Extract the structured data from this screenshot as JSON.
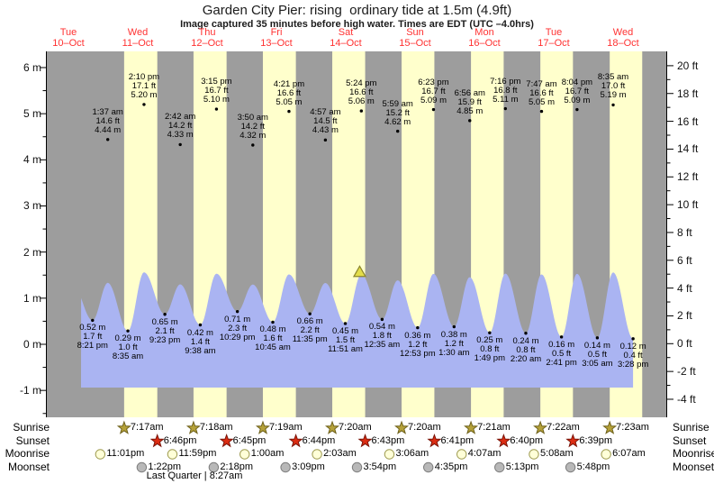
{
  "title": "Garden City Pier: rising  ordinary tide at 1.5m (4.9ft)",
  "subtitle": "Image captured 35 minutes before high water. Times are EDT (UTC –4.0hrs)",
  "colors": {
    "plot_bg": "#9d9d9d",
    "daylight_band": "#ffffcc",
    "tide_fill": "#aab4f2",
    "day_label": "#ff3232",
    "axis": "#000000",
    "marker_fill": "#e3dd4a",
    "marker_stroke": "#8b852b"
  },
  "chart_data": {
    "type": "area",
    "title": "Garden City Pier: rising  ordinary tide at 1.5m (4.9ft)",
    "x_axis": {
      "days": [
        {
          "name": "Tue",
          "date": "10–Oct"
        },
        {
          "name": "Wed",
          "date": "11–Oct"
        },
        {
          "name": "Thu",
          "date": "12–Oct"
        },
        {
          "name": "Fri",
          "date": "13–Oct"
        },
        {
          "name": "Sat",
          "date": "14–Oct"
        },
        {
          "name": "Sun",
          "date": "15–Oct"
        },
        {
          "name": "Mon",
          "date": "16–Oct"
        },
        {
          "name": "Tue",
          "date": "17–Oct"
        },
        {
          "name": "Wed",
          "date": "18–Oct"
        }
      ]
    },
    "y_axis_left": {
      "unit": "m",
      "ticks": [
        6,
        5,
        4,
        3,
        2,
        1,
        0,
        -1
      ],
      "minor_step": 0.5
    },
    "y_axis_right": {
      "unit": "ft",
      "ticks": [
        20,
        18,
        16,
        14,
        12,
        10,
        8,
        6,
        4,
        2,
        0,
        -2,
        -4
      ],
      "minor_step": 1
    },
    "high_tides": [
      {
        "day": 1,
        "hour": 1.6167,
        "time": "1:37 am",
        "ft": "14.6 ft",
        "m": "4.44 m"
      },
      {
        "day": 1,
        "hour": 14.1667,
        "time": "2:10 pm",
        "ft": "17.1 ft",
        "m": "5.20 m"
      },
      {
        "day": 2,
        "hour": 2.7,
        "time": "2:42 am",
        "ft": "14.2 ft",
        "m": "4.33 m"
      },
      {
        "day": 2,
        "hour": 15.25,
        "time": "3:15 pm",
        "ft": "16.7 ft",
        "m": "5.10 m"
      },
      {
        "day": 3,
        "hour": 3.8333,
        "time": "3:50 am",
        "ft": "14.2 ft",
        "m": "4.32 m"
      },
      {
        "day": 3,
        "hour": 16.35,
        "time": "4:21 pm",
        "ft": "16.6 ft",
        "m": "5.05 m"
      },
      {
        "day": 4,
        "hour": 4.95,
        "time": "4:57 am",
        "ft": "14.5 ft",
        "m": "4.43 m"
      },
      {
        "day": 4,
        "hour": 17.4,
        "time": "5:24 pm",
        "ft": "16.6 ft",
        "m": "5.06 m"
      },
      {
        "day": 5,
        "hour": 5.9833,
        "time": "5:59 am",
        "ft": "15.2 ft",
        "m": "4.62 m"
      },
      {
        "day": 5,
        "hour": 18.3833,
        "time": "6:23 pm",
        "ft": "16.7 ft",
        "m": "5.09 m"
      },
      {
        "day": 6,
        "hour": 6.9333,
        "time": "6:56 am",
        "ft": "15.9 ft",
        "m": "4.85 m"
      },
      {
        "day": 6,
        "hour": 19.2667,
        "time": "7:16 pm",
        "ft": "16.8 ft",
        "m": "5.11 m"
      },
      {
        "day": 7,
        "hour": 7.7833,
        "time": "7:47 am",
        "ft": "16.6 ft",
        "m": "5.05 m"
      },
      {
        "day": 7,
        "hour": 20.0667,
        "time": "8:04 pm",
        "ft": "16.7 ft",
        "m": "5.09 m"
      },
      {
        "day": 8,
        "hour": 8.5833,
        "time": "8:35 am",
        "ft": "17.0 ft",
        "m": "5.19 m"
      }
    ],
    "low_tides": [
      {
        "day": 0,
        "hour": 20.35,
        "time": "8:21 pm",
        "ft": "1.7 ft",
        "m": "0.52 m"
      },
      {
        "day": 1,
        "hour": 8.5833,
        "time": "8:35 am",
        "ft": "1.0 ft",
        "m": "0.29 m"
      },
      {
        "day": 1,
        "hour": 21.3833,
        "time": "9:23 pm",
        "ft": "2.1 ft",
        "m": "0.65 m"
      },
      {
        "day": 2,
        "hour": 9.6333,
        "time": "9:38 am",
        "ft": "1.4 ft",
        "m": "0.42 m"
      },
      {
        "day": 2,
        "hour": 22.4833,
        "time": "10:29 pm",
        "ft": "2.3 ft",
        "m": "0.71 m"
      },
      {
        "day": 3,
        "hour": 10.75,
        "time": "10:45 am",
        "ft": "1.6 ft",
        "m": "0.48 m"
      },
      {
        "day": 3,
        "hour": 23.5833,
        "time": "11:35 pm",
        "ft": "2.2 ft",
        "m": "0.66 m"
      },
      {
        "day": 4,
        "hour": 11.85,
        "time": "11:51 am",
        "ft": "1.5 ft",
        "m": "0.45 m"
      },
      {
        "day": 5,
        "hour": 0.5833,
        "time": "12:35 am",
        "ft": "1.8 ft",
        "m": "0.54 m"
      },
      {
        "day": 5,
        "hour": 12.8833,
        "time": "12:53 pm",
        "ft": "1.2 ft",
        "m": "0.36 m"
      },
      {
        "day": 6,
        "hour": 1.5,
        "time": "1:30 am",
        "ft": "1.2 ft",
        "m": "0.38 m"
      },
      {
        "day": 6,
        "hour": 13.8167,
        "time": "1:49 pm",
        "ft": "0.8 ft",
        "m": "0.25 m"
      },
      {
        "day": 7,
        "hour": 2.3333,
        "time": "2:20 am",
        "ft": "0.8 ft",
        "m": "0.24 m"
      },
      {
        "day": 7,
        "hour": 14.6833,
        "time": "2:41 pm",
        "ft": "0.5 ft",
        "m": "0.16 m"
      },
      {
        "day": 8,
        "hour": 3.0833,
        "time": "3:05 am",
        "ft": "0.5 ft",
        "m": "0.14 m"
      },
      {
        "day": 8,
        "hour": 15.4667,
        "time": "3:28 pm",
        "ft": "0.4 ft",
        "m": "0.12 m"
      }
    ],
    "daylight_bands": [
      {
        "day": 1,
        "from": 7.283,
        "to": 18.767
      },
      {
        "day": 2,
        "from": 7.3,
        "to": 18.75
      },
      {
        "day": 3,
        "from": 7.317,
        "to": 18.733
      },
      {
        "day": 4,
        "from": 7.333,
        "to": 18.717
      },
      {
        "day": 5,
        "from": 7.333,
        "to": 18.683
      },
      {
        "day": 6,
        "from": 7.35,
        "to": 18.667
      },
      {
        "day": 7,
        "from": 7.367,
        "to": 18.65
      },
      {
        "day": 8,
        "from": 7.383,
        "to": 18.633
      }
    ],
    "capture_marker": {
      "shape": "triangle",
      "day": 4,
      "hour": 16.82,
      "level": "1.5m (4.9ft)"
    }
  },
  "astro": {
    "rows": [
      {
        "id": "sunrise",
        "label": "Sunrise",
        "icon": "star",
        "fill": "#b5a139",
        "stroke": "#6f621c",
        "events": [
          {
            "day": 1,
            "hour": 7.283,
            "time": "7:17am"
          },
          {
            "day": 2,
            "hour": 7.3,
            "time": "7:18am"
          },
          {
            "day": 3,
            "hour": 7.317,
            "time": "7:19am"
          },
          {
            "day": 4,
            "hour": 7.333,
            "time": "7:20am"
          },
          {
            "day": 5,
            "hour": 7.333,
            "time": "7:20am"
          },
          {
            "day": 6,
            "hour": 7.35,
            "time": "7:21am"
          },
          {
            "day": 7,
            "hour": 7.367,
            "time": "7:22am"
          },
          {
            "day": 8,
            "hour": 7.383,
            "time": "7:23am"
          }
        ]
      },
      {
        "id": "sunset",
        "label": "Sunset",
        "icon": "star",
        "fill": "#dc2c12",
        "stroke": "#7a1408",
        "events": [
          {
            "day": 1,
            "hour": 18.767,
            "time": "6:46pm"
          },
          {
            "day": 2,
            "hour": 18.75,
            "time": "6:45pm"
          },
          {
            "day": 3,
            "hour": 18.733,
            "time": "6:44pm"
          },
          {
            "day": 4,
            "hour": 18.717,
            "time": "6:43pm"
          },
          {
            "day": 5,
            "hour": 18.683,
            "time": "6:41pm"
          },
          {
            "day": 6,
            "hour": 18.667,
            "time": "6:40pm"
          },
          {
            "day": 7,
            "hour": 18.65,
            "time": "6:39pm"
          }
        ]
      },
      {
        "id": "moonrise",
        "label": "Moonrise",
        "icon": "circle",
        "fill": "#ffffd8",
        "stroke": "#9f9c52",
        "events": [
          {
            "day": 0,
            "hour": 23.017,
            "time": "11:01pm"
          },
          {
            "day": 1,
            "hour": 23.983,
            "time": "11:59pm"
          },
          {
            "day": 3,
            "hour": 1.0,
            "time": "1:00am"
          },
          {
            "day": 4,
            "hour": 2.05,
            "time": "2:03am"
          },
          {
            "day": 5,
            "hour": 3.1,
            "time": "3:06am"
          },
          {
            "day": 6,
            "hour": 4.117,
            "time": "4:07am"
          },
          {
            "day": 7,
            "hour": 5.133,
            "time": "5:08am"
          },
          {
            "day": 8,
            "hour": 6.117,
            "time": "6:07am"
          }
        ]
      },
      {
        "id": "moonset",
        "label": "Moonset",
        "icon": "circle",
        "fill": "#b8b8b8",
        "stroke": "#7d7d7d",
        "events": [
          {
            "day": 1,
            "hour": 13.367,
            "time": "1:22pm"
          },
          {
            "day": 2,
            "hour": 14.3,
            "time": "2:18pm"
          },
          {
            "day": 3,
            "hour": 15.15,
            "time": "3:09pm"
          },
          {
            "day": 4,
            "hour": 15.9,
            "time": "3:54pm"
          },
          {
            "day": 5,
            "hour": 16.583,
            "time": "4:35pm"
          },
          {
            "day": 6,
            "hour": 17.217,
            "time": "5:13pm"
          },
          {
            "day": 7,
            "hour": 17.8,
            "time": "5:48pm"
          }
        ]
      }
    ],
    "moon_phase": {
      "day": 1,
      "hour": 8.45,
      "text": "Last Quarter | 8:27am"
    }
  }
}
